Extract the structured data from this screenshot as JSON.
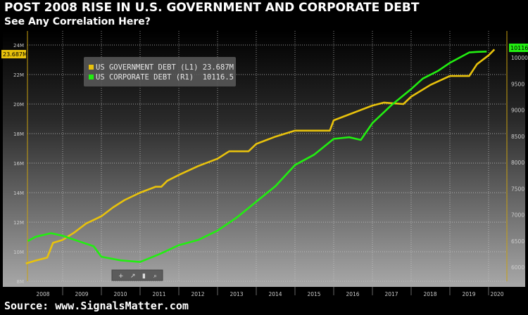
{
  "title": "POST 2008 RISE IN U.S. GOVERNMENT AND CORPORATE DEBT",
  "subtitle": "See Any Correlation Here?",
  "source": "Source: www.SignalsMatter.com",
  "toolbar": [
    "+",
    "↗",
    "▮",
    "⌕"
  ],
  "chart_data": {
    "type": "line",
    "title": "POST 2008 RISE IN U.S. GOVERNMENT AND CORPORATE DEBT",
    "x_ticks": [
      "2008",
      "2009",
      "2010",
      "2011",
      "2012",
      "2013",
      "2014",
      "2015",
      "2016",
      "2017",
      "2018",
      "2019",
      "2020"
    ],
    "xlim": [
      2008,
      2020.3
    ],
    "left_axis": {
      "ticks": [
        "8M",
        "10M",
        "12M",
        "14M",
        "16M",
        "18M",
        "20M",
        "22M",
        "24M"
      ],
      "ylim": [
        8,
        24.5
      ],
      "current_label": "23.687M"
    },
    "right_axis": {
      "ticks": [
        "6000",
        "6500",
        "7000",
        "7500",
        "8000",
        "8500",
        "9000",
        "9500",
        "10000"
      ],
      "ylim": [
        5840,
        10460
      ],
      "current_label": "10116.5"
    },
    "legend": [
      {
        "label": "US GOVERNMENT DEBT (L1) 23.687M",
        "color": "#e8c20c"
      },
      {
        "label": "US CORPORATE DEBT (R1)  10116.5",
        "color": "#22ee11"
      }
    ],
    "series": [
      {
        "name": "US GOVERNMENT DEBT (L1)",
        "axis": "left",
        "color": "#e8c20c",
        "x": [
          2008.05,
          2008.3,
          2008.6,
          2008.75,
          2009.0,
          2009.3,
          2009.6,
          2010.0,
          2010.3,
          2010.6,
          2011.0,
          2011.4,
          2011.55,
          2011.7,
          2012.0,
          2012.5,
          2013.0,
          2013.3,
          2013.8,
          2014.0,
          2014.5,
          2015.0,
          2015.3,
          2015.9,
          2016.0,
          2016.5,
          2017.0,
          2017.3,
          2017.8,
          2018.0,
          2018.5,
          2019.0,
          2019.5,
          2019.7,
          2020.0,
          2020.15
        ],
        "y": [
          9.2,
          9.4,
          9.6,
          10.6,
          10.8,
          11.3,
          11.9,
          12.4,
          13.0,
          13.5,
          14.0,
          14.4,
          14.4,
          14.8,
          15.2,
          15.8,
          16.3,
          16.8,
          16.8,
          17.3,
          17.8,
          18.2,
          18.2,
          18.2,
          18.9,
          19.4,
          19.9,
          20.1,
          20.0,
          20.5,
          21.3,
          21.9,
          21.9,
          22.7,
          23.3,
          23.7
        ]
      },
      {
        "name": "US CORPORATE DEBT (R1)",
        "axis": "right",
        "color": "#22ee11",
        "x": [
          2008.1,
          2008.3,
          2008.7,
          2009.0,
          2009.4,
          2009.8,
          2010.0,
          2010.5,
          2011.0,
          2011.5,
          2012.0,
          2012.5,
          2013.0,
          2013.5,
          2014.0,
          2014.5,
          2015.0,
          2015.5,
          2016.0,
          2016.4,
          2016.7,
          2017.0,
          2017.5,
          2018.0,
          2018.3,
          2018.7,
          2019.0,
          2019.5,
          2019.7,
          2019.95
        ],
        "y": [
          6500,
          6580,
          6650,
          6600,
          6500,
          6400,
          6200,
          6130,
          6100,
          6250,
          6420,
          6520,
          6700,
          6950,
          7250,
          7550,
          7950,
          8150,
          8450,
          8480,
          8430,
          8750,
          9100,
          9400,
          9600,
          9750,
          9900,
          10100,
          10110,
          10116.5
        ]
      }
    ]
  }
}
